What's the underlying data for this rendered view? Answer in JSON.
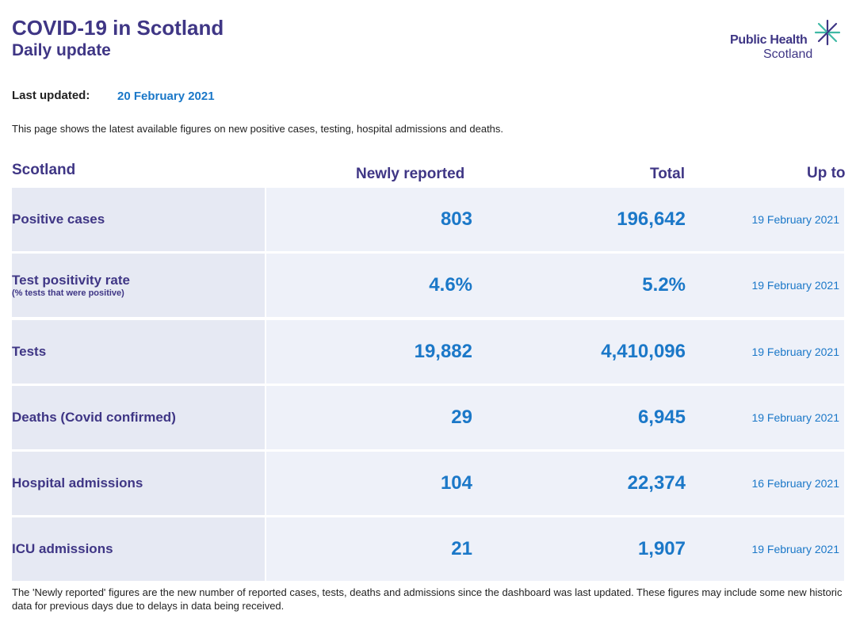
{
  "header": {
    "title": "COVID-19 in Scotland",
    "subtitle": "Daily update"
  },
  "logo": {
    "line1": "Public Health",
    "line2": "Scotland",
    "icon": "star-burst-icon",
    "colors": {
      "text": "#3f3685",
      "accent": "#3fb9a5"
    }
  },
  "last_updated": {
    "label": "Last updated:",
    "value": "20 February 2021"
  },
  "intro": "This page shows the latest available figures on new positive cases, testing, hospital admissions and deaths.",
  "table": {
    "headers": {
      "region": "Scotland",
      "newly_reported": "Newly reported",
      "total": "Total",
      "up_to": "Up to"
    },
    "rows": [
      {
        "label": "Positive cases",
        "sublabel": "",
        "newly_reported": "803",
        "total": "196,642",
        "up_to": "19 February 2021"
      },
      {
        "label": "Test positivity rate",
        "sublabel": "(% tests that were positive)",
        "newly_reported": "4.6%",
        "total": "5.2%",
        "up_to": "19 February 2021"
      },
      {
        "label": "Tests",
        "sublabel": "",
        "newly_reported": "19,882",
        "total": "4,410,096",
        "up_to": "19 February 2021"
      },
      {
        "label": "Deaths (Covid confirmed)",
        "sublabel": "",
        "newly_reported": "29",
        "total": "6,945",
        "up_to": "19 February 2021"
      },
      {
        "label": "Hospital admissions",
        "sublabel": "",
        "newly_reported": "104",
        "total": "22,374",
        "up_to": "16 February 2021"
      },
      {
        "label": "ICU admissions",
        "sublabel": "",
        "newly_reported": "21",
        "total": "1,907",
        "up_to": "19 February 2021"
      }
    ]
  },
  "footnote": "The 'Newly reported' figures are the new number of reported cases, tests, deaths and admissions since the dashboard was last updated. These figures may include some new historic data for previous days due to delays in data being received.",
  "colors": {
    "heading": "#3f3685",
    "value": "#1b78c8",
    "label_cell": "#e6e9f3",
    "data_cell": "#eef1f9"
  }
}
